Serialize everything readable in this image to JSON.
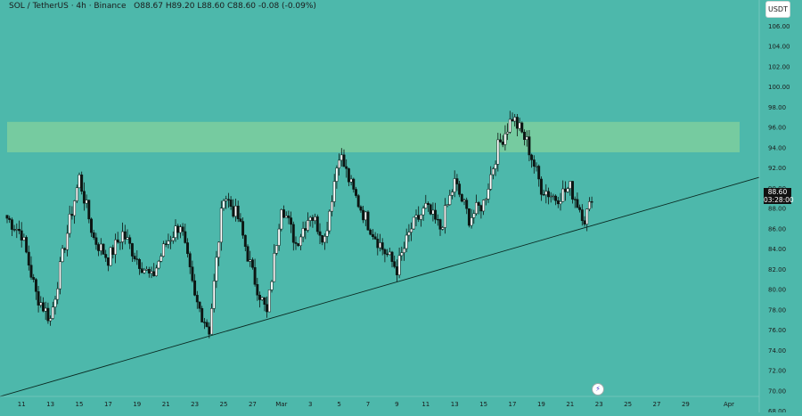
{
  "header": {
    "symbol": "SOL / TetherUS · 4h · Binance",
    "open": "O88.67",
    "high": "H89.20",
    "low": "L88.60",
    "close": "C88.60",
    "change": "-0.08 (-0.09%)"
  },
  "currency_button": "USDT",
  "price_tag": {
    "price": "88.60",
    "countdown": "03:28:00"
  },
  "colors": {
    "background": "#4db8ab",
    "zone": "#7bcd9e",
    "candle_up": "#ffffff",
    "candle_down": "#0c1512",
    "trendline": "#0a2a22"
  },
  "icons": {
    "replay": "lightning-bolt-icon"
  },
  "chart_data": {
    "type": "candlestick",
    "title": "",
    "ylim": [
      68,
      108
    ],
    "y_ticks": [
      "68.00",
      "70.00",
      "72.00",
      "74.00",
      "76.00",
      "78.00",
      "80.00",
      "82.00",
      "84.00",
      "86.00",
      "88.00",
      "90.00",
      "92.00",
      "94.00",
      "96.00",
      "98.00",
      "100.00",
      "102.00",
      "104.00",
      "106.00"
    ],
    "x_ticks": [
      "11",
      "13",
      "15",
      "17",
      "19",
      "21",
      "23",
      "25",
      "27",
      "Mar",
      "3",
      "5",
      "7",
      "9",
      "11",
      "13",
      "15",
      "17",
      "19",
      "21",
      "23",
      "25",
      "27",
      "29",
      "Apr"
    ],
    "grid": false,
    "resistance_zone": [
      93.5,
      96.5
    ],
    "trendline": {
      "from": [
        "Feb 10",
        69.4
      ],
      "to": [
        "Mar 29",
        91.2
      ]
    },
    "anchors": [
      [
        "Feb 10",
        87.0
      ],
      [
        "Feb 11",
        85.5
      ],
      [
        "Feb 12",
        79.5
      ],
      [
        "Feb 13",
        77.0
      ],
      [
        "Feb 14",
        84.5
      ],
      [
        "Feb 15",
        91.0
      ],
      [
        "Feb 16",
        85.0
      ],
      [
        "Feb 17",
        83.0
      ],
      [
        "Feb 18",
        85.5
      ],
      [
        "Feb 19",
        83.0
      ],
      [
        "Feb 20",
        81.0
      ],
      [
        "Feb 21",
        84.5
      ],
      [
        "Feb 22",
        86.5
      ],
      [
        "Feb 23",
        79.0
      ],
      [
        "Feb 24",
        76.0
      ],
      [
        "Feb 25",
        89.5
      ],
      [
        "Feb 26",
        87.0
      ],
      [
        "Feb 27",
        81.5
      ],
      [
        "Feb 28",
        77.5
      ],
      [
        "Mar 1",
        88.5
      ],
      [
        "Mar 2",
        84.5
      ],
      [
        "Mar 3",
        87.5
      ],
      [
        "Mar 4",
        85.0
      ],
      [
        "Mar 5",
        93.5
      ],
      [
        "Mar 6",
        89.5
      ],
      [
        "Mar 7",
        86.5
      ],
      [
        "Mar 8",
        84.0
      ],
      [
        "Mar 9",
        82.0
      ],
      [
        "Mar 10",
        86.0
      ],
      [
        "Mar 11",
        88.0
      ],
      [
        "Mar 12",
        86.0
      ],
      [
        "Mar 13",
        90.5
      ],
      [
        "Mar 14",
        87.0
      ],
      [
        "Mar 15",
        88.5
      ],
      [
        "Mar 16",
        94.0
      ],
      [
        "Mar 17",
        97.0
      ],
      [
        "Mar 18",
        94.5
      ],
      [
        "Mar 19",
        90.0
      ],
      [
        "Mar 20",
        89.0
      ],
      [
        "Mar 21",
        90.0
      ],
      [
        "Mar 22",
        87.0
      ],
      [
        "Mar 22.5",
        88.6
      ]
    ],
    "last_price": 88.6
  }
}
